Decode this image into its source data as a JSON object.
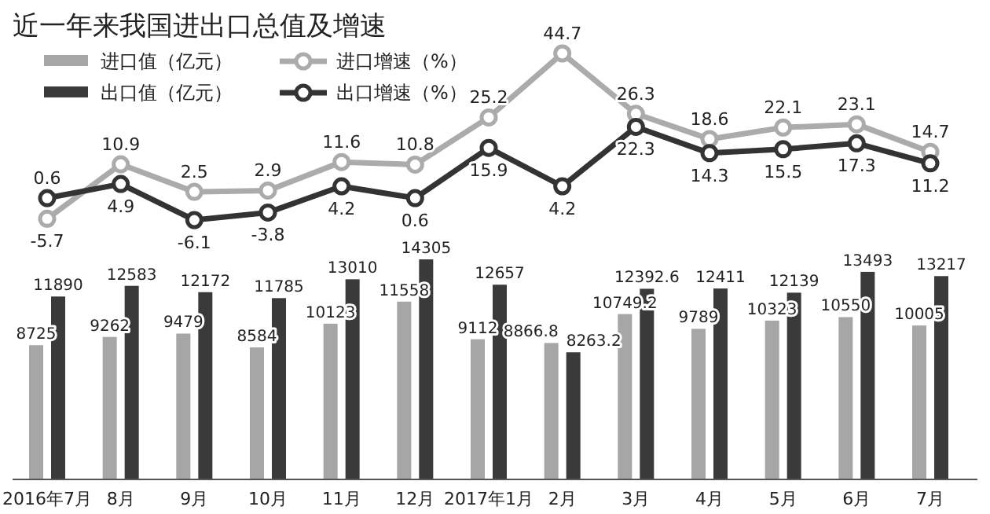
{
  "chart_data": [
    {
      "type": "line",
      "title": "近一年来我国进出口总值及增速",
      "categories": [
        null,
        null,
        null,
        null,
        null,
        null,
        null,
        null,
        null,
        null,
        null,
        null,
        null
      ],
      "series": [
        {
          "name": "进口增速（%）",
          "color": "#ababab",
          "values": [
            -5.7,
            10.9,
            2.5,
            2.9,
            11.6,
            10.8,
            25.2,
            44.7,
            26.3,
            18.6,
            22.1,
            23.1,
            14.7
          ]
        },
        {
          "name": "出口增速（%）",
          "color": "#333333",
          "values": [
            0.6,
            4.9,
            -6.1,
            -3.8,
            4.2,
            0.6,
            15.9,
            4.2,
            22.3,
            14.3,
            15.5,
            17.3,
            11.2
          ]
        }
      ],
      "tick_labels": false,
      "data_labels": true,
      "marker": "circle",
      "line_style": "solid",
      "legend": "top left"
    },
    {
      "type": "bar",
      "categories": [
        "2016年7月",
        "8月",
        "9月",
        "10月",
        "11月",
        "12月",
        "2017年1月",
        "2月",
        "3月",
        "4月",
        "5月",
        "6月",
        "7月"
      ],
      "series": [
        {
          "name": "进口值（亿元）",
          "color": "#a6a6a6",
          "values": [
            8725,
            9262,
            9479,
            8584,
            10123,
            11558,
            9112,
            8866.8,
            10749.2,
            9789,
            10323,
            10550,
            10005
          ]
        },
        {
          "name": "出口值（亿元）",
          "color": "#3a3a3a",
          "values": [
            11890,
            12583,
            12172,
            11785,
            13010,
            14305,
            12657,
            8263.2,
            12392.6,
            12411,
            12139,
            13493,
            13217
          ]
        }
      ],
      "tick_labels": "x",
      "data_labels": true,
      "legend": "top left"
    }
  ]
}
